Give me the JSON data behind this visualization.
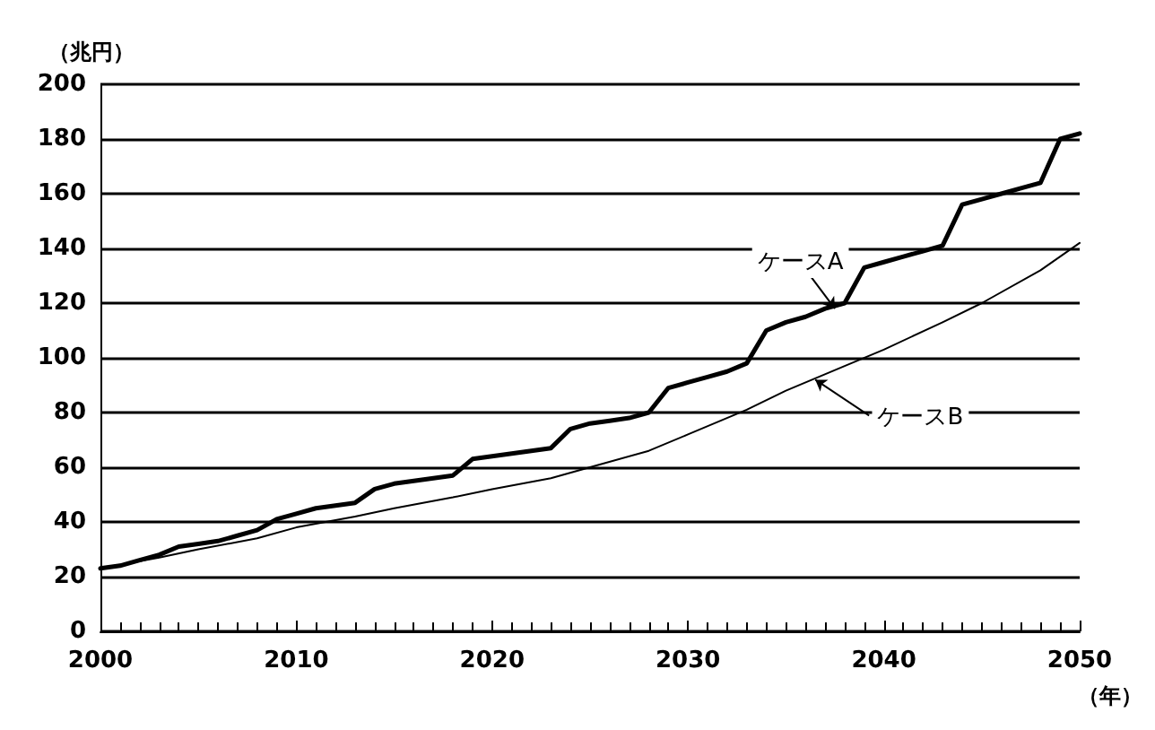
{
  "chart_data": {
    "type": "line",
    "xlabel": "（年）",
    "ylabel": "（兆円）",
    "xlim": [
      2000,
      2050
    ],
    "xticks": [
      2000,
      2010,
      2020,
      2030,
      2040,
      2050
    ],
    "ylim": [
      0,
      200
    ],
    "yticks": [
      0,
      20,
      40,
      60,
      80,
      100,
      120,
      140,
      160,
      180,
      200
    ],
    "grid": "y",
    "marker": "none",
    "line_style": "solid",
    "series": [
      {
        "color": "#000000",
        "x": [
          2000,
          2001,
          2002,
          2003,
          2004,
          2005,
          2006,
          2007,
          2008,
          2009,
          2010,
          2011,
          2012,
          2013,
          2014,
          2015,
          2016,
          2017,
          2018,
          2019,
          2020,
          2021,
          2022,
          2023,
          2024,
          2025,
          2026,
          2027,
          2028,
          2029,
          2030,
          2031,
          2032,
          2033,
          2034,
          2035,
          2036,
          2037,
          2038,
          2039,
          2040,
          2041,
          2042,
          2043,
          2044,
          2045,
          2046,
          2047,
          2048,
          2049,
          2050
        ],
        "values": [
          23,
          24,
          26,
          28,
          31,
          32,
          33,
          35,
          37,
          41,
          43,
          45,
          46,
          47,
          52,
          54,
          55,
          56,
          57,
          63,
          64,
          65,
          66,
          67,
          74,
          76,
          77,
          78,
          80,
          89,
          91,
          93,
          95,
          98,
          110,
          113,
          115,
          118,
          120,
          133,
          135,
          137,
          139,
          141,
          156,
          158,
          160,
          162,
          164,
          180,
          182
        ]
      },
      {
        "color": "#000000",
        "x": [
          2000,
          2003,
          2005,
          2008,
          2010,
          2013,
          2015,
          2018,
          2020,
          2023,
          2025,
          2028,
          2030,
          2033,
          2035,
          2038,
          2040,
          2043,
          2045,
          2048,
          2050
        ],
        "values": [
          23,
          27,
          30,
          34,
          38,
          42,
          45,
          49,
          52,
          56,
          60,
          66,
          72,
          81,
          88,
          97,
          103,
          113,
          120,
          132,
          142
        ]
      }
    ],
    "annotations": [
      {
        "text": "ケースA",
        "x": 2037.5,
        "y": 118
      },
      {
        "text": "ケースB",
        "x": 2036.5,
        "y": 92
      }
    ]
  }
}
